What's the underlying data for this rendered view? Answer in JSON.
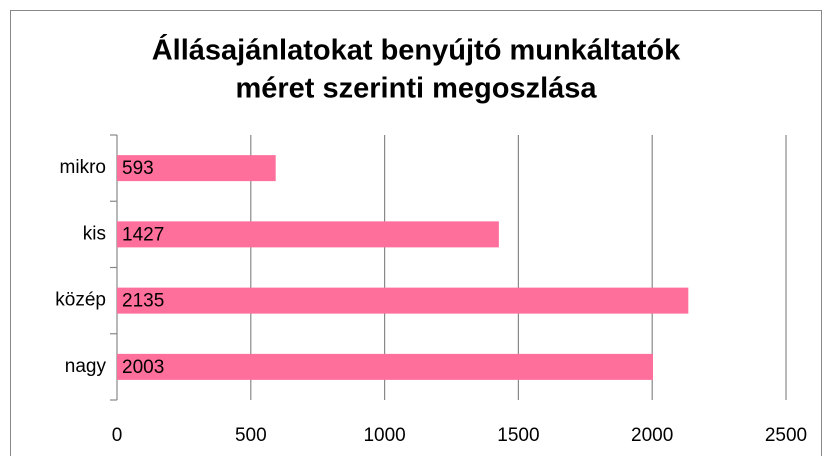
{
  "chart_data": {
    "type": "bar",
    "orientation": "horizontal",
    "title": [
      "Állásajánlatokat benyújtó munkáltatók",
      "méret szerinti megoszlása"
    ],
    "categories": [
      "mikro",
      "kis",
      "közép",
      "nagy"
    ],
    "values": [
      593,
      1427,
      2135,
      2003
    ],
    "color": "#ff6f9c",
    "xlim": [
      0,
      2500
    ],
    "xticks": [
      0,
      500,
      1000,
      1500,
      2000,
      2500
    ],
    "grid": true
  }
}
